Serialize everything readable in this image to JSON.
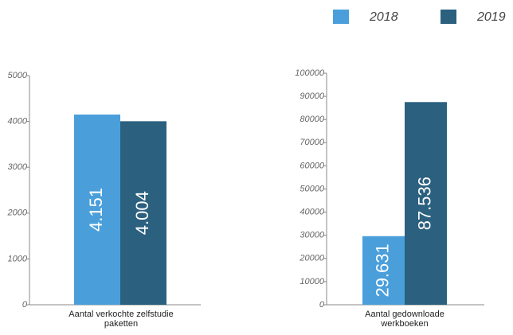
{
  "chart_data": [
    {
      "type": "bar",
      "categories": [
        "Aantal verkochte zelfstudie paketten"
      ],
      "series": [
        {
          "name": "2018",
          "color": "#4a9fdb",
          "values": [
            4151
          ],
          "value_labels": [
            "4.151"
          ]
        },
        {
          "name": "2019",
          "color": "#2b607f",
          "values": [
            4004
          ],
          "value_labels": [
            "4.004"
          ]
        }
      ],
      "ylim": [
        0,
        5000
      ],
      "yticks": [
        0,
        1000,
        2000,
        3000,
        4000,
        5000
      ],
      "legend": "top-right"
    },
    {
      "type": "bar",
      "categories": [
        "Aantal gedownloade werkboeken"
      ],
      "series": [
        {
          "color": "#4a9fdb",
          "values": [
            29631
          ],
          "value_labels": [
            "29.631"
          ]
        },
        {
          "color": "#2b607f",
          "values": [
            87536
          ],
          "value_labels": [
            "87.536"
          ]
        }
      ],
      "ylim": [
        0,
        100000
      ],
      "yticks": [
        0,
        10000,
        20000,
        30000,
        40000,
        50000,
        60000,
        70000,
        80000,
        90000,
        100000
      ]
    }
  ]
}
